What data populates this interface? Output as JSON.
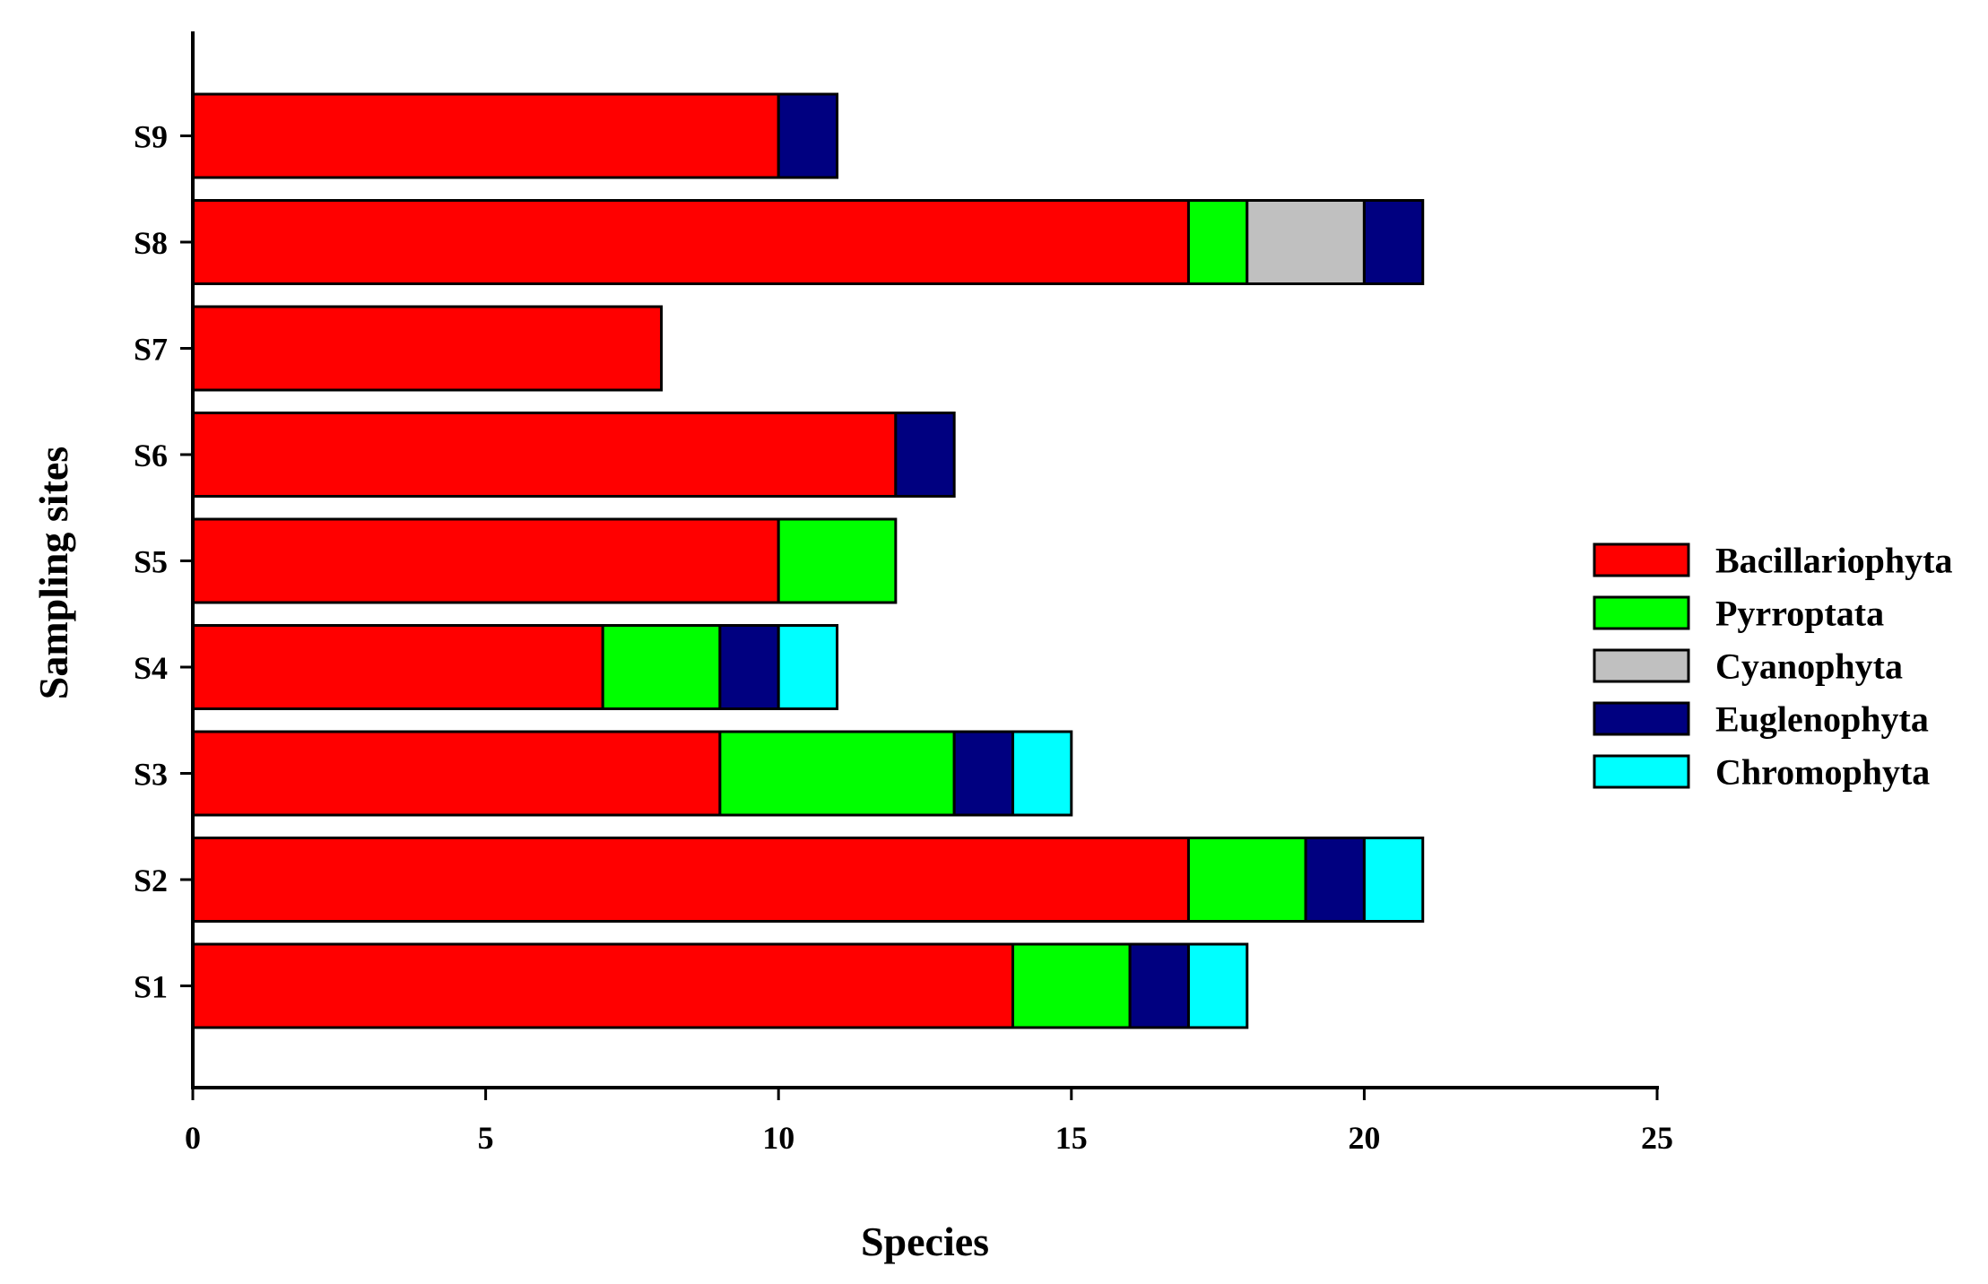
{
  "chart_data": {
    "type": "bar",
    "orientation": "horizontal",
    "stacked": true,
    "title": "",
    "xlabel": "Species",
    "ylabel": "Sampling sites",
    "xlim": [
      0,
      25
    ],
    "xticks": [
      0,
      5,
      10,
      15,
      20,
      25
    ],
    "grid": false,
    "legend_position": "right",
    "categories": [
      "S1",
      "S2",
      "S3",
      "S4",
      "S5",
      "S6",
      "S7",
      "S8",
      "S9"
    ],
    "series": [
      {
        "name": "Bacillariophyta",
        "color": "#ff0000",
        "values": [
          14,
          17,
          9,
          7,
          10,
          12,
          8,
          17,
          10
        ]
      },
      {
        "name": "Pyrroptata",
        "color": "#00ff00",
        "values": [
          2,
          2,
          4,
          2,
          2,
          0,
          0,
          1,
          0
        ]
      },
      {
        "name": "Cyanophyta",
        "color": "#c0c0c0",
        "values": [
          0,
          0,
          0,
          0,
          0,
          0,
          0,
          2,
          0
        ]
      },
      {
        "name": "Euglenophyta",
        "color": "#000080",
        "values": [
          1,
          1,
          1,
          1,
          0,
          1,
          0,
          1,
          1
        ]
      },
      {
        "name": "Chromophyta",
        "color": "#00ffff",
        "values": [
          1,
          1,
          1,
          1,
          0,
          0,
          0,
          0,
          0
        ]
      }
    ]
  }
}
